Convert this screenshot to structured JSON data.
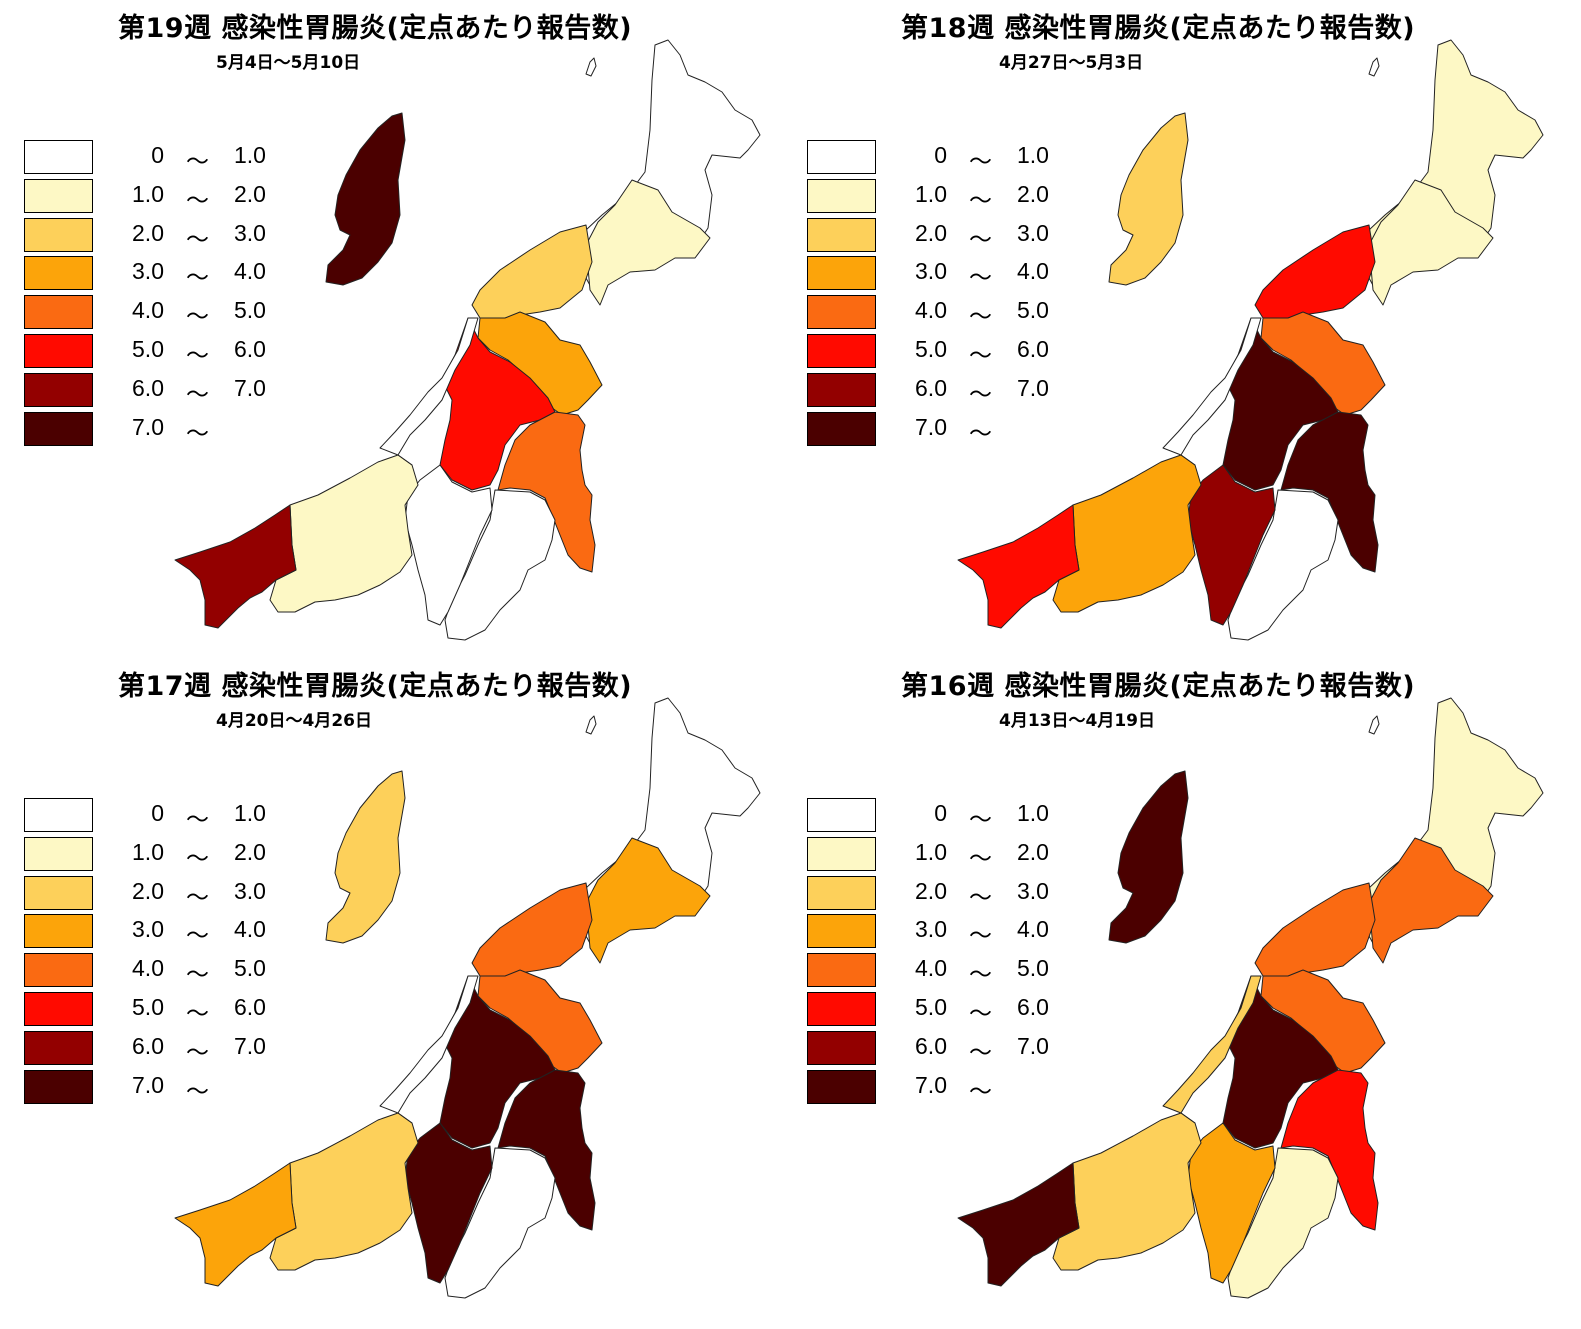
{
  "colors": {
    "c0": "#ffffff",
    "c1": "#fdf8c5",
    "c2": "#fdd05a",
    "c3": "#fca40a",
    "c4": "#fa6a12",
    "c5": "#ff0a00",
    "c6": "#930000",
    "c7": "#4b0000"
  },
  "legend": [
    {
      "lo": "0",
      "til": "～",
      "hi": "1.0",
      "color": "c0"
    },
    {
      "lo": "1.0",
      "til": "～",
      "hi": "2.0",
      "color": "c1"
    },
    {
      "lo": "2.0",
      "til": "～",
      "hi": "3.0",
      "color": "c2"
    },
    {
      "lo": "3.0",
      "til": "～",
      "hi": "4.0",
      "color": "c3"
    },
    {
      "lo": "4.0",
      "til": "～",
      "hi": "5.0",
      "color": "c4"
    },
    {
      "lo": "5.0",
      "til": "～",
      "hi": "6.0",
      "color": "c5"
    },
    {
      "lo": "6.0",
      "til": "～",
      "hi": "7.0",
      "color": "c6"
    },
    {
      "lo": "7.0",
      "til": "～",
      "hi": "",
      "color": "c7"
    }
  ],
  "panels": [
    {
      "title": "第19週 感染性胃腸炎(定点あたり報告数)",
      "date": "5月4日～5月10日",
      "regions": {
        "sado": "c7",
        "north": "c0",
        "murakami": "c1",
        "niigata": "c2",
        "sanjo": "c3",
        "nagaoka": "c5",
        "uonuma": "c4",
        "minamiuonuma": "c0",
        "kashiwazaki": "c0",
        "joetsu": "c1",
        "itoigawa": "c6",
        "yahiko": "c0"
      }
    },
    {
      "title": "第18週 感染性胃腸炎(定点あたり報告数)",
      "date": "4月27日～5月3日",
      "regions": {
        "sado": "c2",
        "north": "c1",
        "murakami": "c1",
        "niigata": "c5",
        "sanjo": "c4",
        "nagaoka": "c7",
        "uonuma": "c7",
        "minamiuonuma": "c0",
        "kashiwazaki": "c6",
        "joetsu": "c3",
        "itoigawa": "c5",
        "yahiko": "c0"
      }
    },
    {
      "title": "第17週 感染性胃腸炎(定点あたり報告数)",
      "date": "4月20日～4月26日",
      "regions": {
        "sado": "c2",
        "north": "c0",
        "murakami": "c3",
        "niigata": "c4",
        "sanjo": "c4",
        "nagaoka": "c7",
        "uonuma": "c7",
        "minamiuonuma": "c0",
        "kashiwazaki": "c7",
        "joetsu": "c2",
        "itoigawa": "c3",
        "yahiko": "c0"
      }
    },
    {
      "title": "第16週 感染性胃腸炎(定点あたり報告数)",
      "date": "4月13日～4月19日",
      "regions": {
        "sado": "c7",
        "north": "c1",
        "murakami": "c4",
        "niigata": "c4",
        "sanjo": "c4",
        "nagaoka": "c7",
        "uonuma": "c5",
        "minamiuonuma": "c1",
        "kashiwazaki": "c3",
        "joetsu": "c2",
        "itoigawa": "c7",
        "yahiko": "c2"
      }
    }
  ]
}
